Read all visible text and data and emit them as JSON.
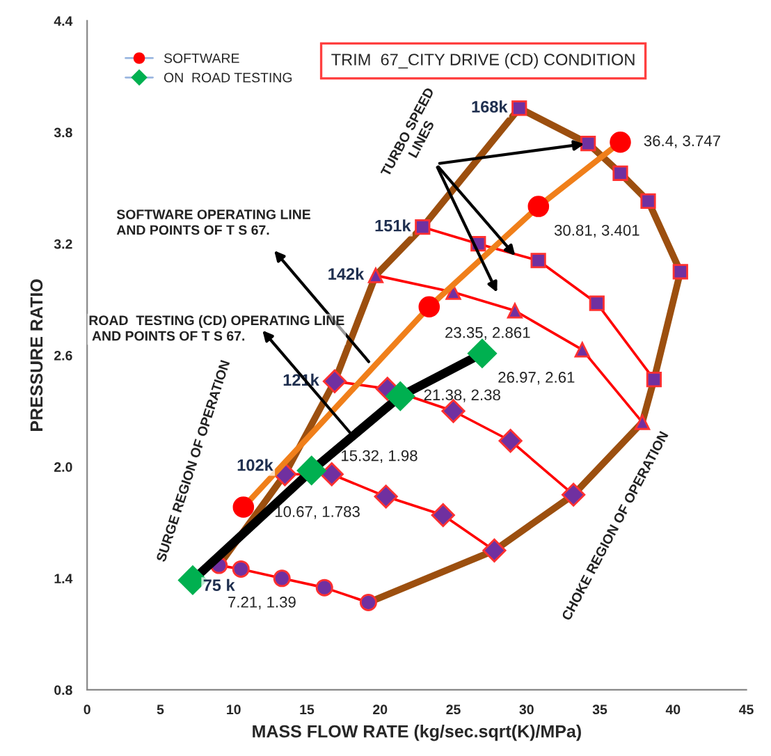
{
  "chart_data": {
    "type": "line",
    "title": "TRIM  67_CITY DRIVE (CD) CONDITION",
    "xlabel": "MASS FLOW RATE (kg/sec.sqrt(K)/MPa)",
    "ylabel": "PRESSURE RATIO",
    "xlim": [
      0,
      45
    ],
    "xticks": [
      0,
      5,
      10,
      15,
      20,
      25,
      30,
      35,
      40,
      45
    ],
    "ylim": [
      0.8,
      4.4
    ],
    "yticks": [
      0.8,
      1.4,
      {
        "value": 2.0,
        "label": "2.0"
      },
      2.6,
      3.2,
      3.8,
      4.4
    ],
    "grid": false,
    "legend": "top left",
    "series": [
      {
        "name": "75 k",
        "color": "#ff0000",
        "colors": [
          "#7030a0",
          "#7030a0",
          "#7030a0",
          "#7030a0",
          "#7030a0"
        ],
        "marker": "circle",
        "x": [
          9.0,
          10.5,
          13.3,
          16.2,
          19.2
        ],
        "values": [
          1.47,
          1.45,
          1.4,
          1.35,
          1.27
        ]
      },
      {
        "name": "102k",
        "color": "#ff0000",
        "colors": [
          "#7030a0",
          "#7030a0",
          "#7030a0",
          "#7030a0",
          "#7030a0"
        ],
        "marker": "diamond",
        "x": [
          13.5,
          16.7,
          20.4,
          24.3,
          27.8
        ],
        "values": [
          1.96,
          1.96,
          1.84,
          1.74,
          1.55
        ]
      },
      {
        "name": "121k",
        "color": "#ff0000",
        "colors": [
          "#7030a0",
          "#7030a0",
          "#7030a0",
          "#7030a0",
          "#7030a0"
        ],
        "marker": "diamond",
        "x": [
          16.9,
          20.5,
          25.0,
          28.9,
          33.2
        ],
        "values": [
          2.46,
          2.42,
          2.3,
          2.14,
          1.85
        ]
      },
      {
        "name": "142k",
        "color": "#ff0000",
        "colors": [
          "#7030a0",
          "#7030a0",
          "#7030a0",
          "#7030a0",
          "#7030a0"
        ],
        "marker": "triangle",
        "x": [
          19.7,
          25.0,
          29.2,
          33.8,
          37.9
        ],
        "values": [
          3.03,
          2.94,
          2.84,
          2.63,
          2.24
        ]
      },
      {
        "name": "151k",
        "color": "#ff0000",
        "colors": [
          "#7030a0",
          "#7030a0",
          "#7030a0",
          "#7030a0",
          "#7030a0"
        ],
        "marker": "square",
        "x": [
          22.9,
          26.7,
          30.8,
          34.8,
          38.7
        ],
        "values": [
          3.29,
          3.2,
          3.11,
          2.88,
          2.47
        ]
      },
      {
        "name": "168k",
        "color": "#9c4f0f",
        "colors": [
          "#7030a0",
          "#7030a0",
          "#7030a0",
          "#7030a0",
          "#7030a0"
        ],
        "marker": "square",
        "x": [
          29.5,
          34.2,
          36.4,
          38.3,
          40.5
        ],
        "values": [
          3.93,
          3.74,
          3.58,
          3.43,
          3.05
        ]
      },
      {
        "color": "#9c4f0f",
        "marker": "none",
        "x": [
          9.0,
          13.5,
          16.9,
          19.7,
          22.9,
          29.5
        ],
        "values": [
          1.47,
          1.96,
          2.46,
          3.03,
          3.29,
          3.93
        ]
      },
      {
        "color": "#9c4f0f",
        "marker": "none",
        "x": [
          40.5,
          38.7,
          37.9,
          33.2,
          27.8,
          19.2
        ],
        "values": [
          3.05,
          2.47,
          2.24,
          1.85,
          1.55,
          1.27
        ]
      },
      {
        "name": "SOFTWARE",
        "color": "#f07f1a",
        "colors": [
          "#ff0000",
          "#ff0000",
          "#ff0000",
          "#ff0000"
        ],
        "marker": "circle",
        "x": [
          10.67,
          23.35,
          30.81,
          36.4
        ],
        "values": [
          1.783,
          2.861,
          3.401,
          3.747
        ],
        "value_labels": [
          "10.67, 1.783",
          "23.35, 2.861",
          "30.81, 3.401",
          "36.4, 3.747"
        ]
      },
      {
        "name": "ON  ROAD TESTING",
        "color": "#000000",
        "colors": [
          "#00b050",
          "#00b050",
          "#00b050",
          "#00b050"
        ],
        "marker": "diamond",
        "x": [
          7.21,
          15.32,
          21.38,
          26.97
        ],
        "values": [
          1.39,
          1.98,
          2.38,
          2.61
        ],
        "value_labels": [
          "7.21, 1.39",
          "15.32, 1.98",
          "21.38, 2.38",
          "26.97, 2.61"
        ]
      }
    ],
    "annotations": [
      {
        "text": "TURBO SPEED\nLINES",
        "x": 34.2,
        "y": 3.74
      },
      "SOFTWARE OPERATING LINE\nAND POINTS OF T S 67.",
      "ROAD  TESTING (CD) OPERATING LINE\n AND POINTS OF T S 67.",
      "SURGE REGION OF OPERATION",
      "CHOKE REGION OF OPERATION"
    ]
  }
}
